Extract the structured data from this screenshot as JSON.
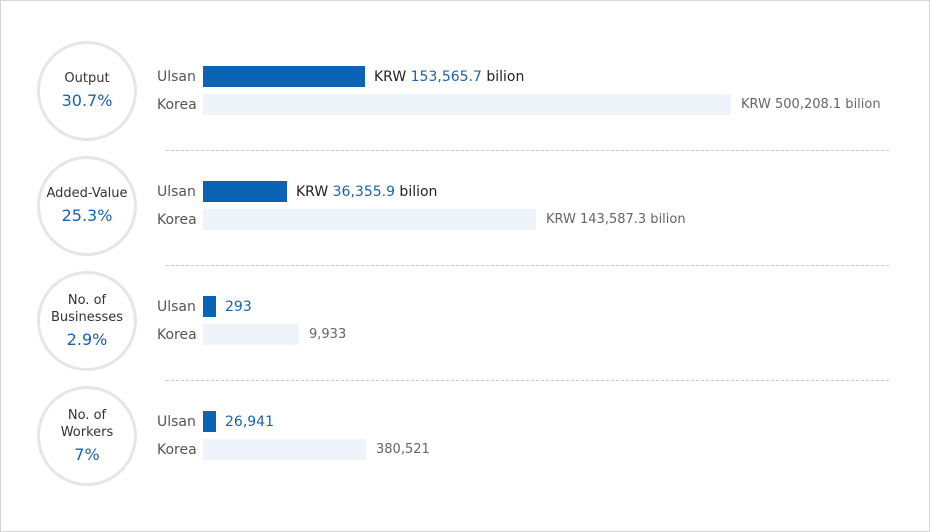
{
  "chart_data": {
    "type": "bar",
    "series_names": [
      "Ulsan",
      "Korea"
    ],
    "categories": [
      {
        "label": "Output",
        "percent": "30.7%",
        "ulsan": {
          "value": 153565.7,
          "prefix": "KRW ",
          "value_text": "153,565.7",
          "suffix": " bilion"
        },
        "korea": {
          "value": 500208.1,
          "text": "KRW 500,208.1 bilion"
        }
      },
      {
        "label": "Added-Value",
        "percent": "25.3%",
        "ulsan": {
          "value": 36355.9,
          "prefix": "KRW ",
          "value_text": "36,355.9",
          "suffix": " bilion"
        },
        "korea": {
          "value": 143587.3,
          "text": "KRW 143,587.3 bilion"
        }
      },
      {
        "label": "No. of\nBusinesses",
        "percent": "2.9%",
        "ulsan": {
          "value": 293,
          "prefix": "",
          "value_text": "293",
          "suffix": ""
        },
        "korea": {
          "value": 9933,
          "text": "9,933"
        }
      },
      {
        "label": "No. of\nWorkers",
        "percent": "7%",
        "ulsan": {
          "value": 26941,
          "prefix": "",
          "value_text": "26,941",
          "suffix": ""
        },
        "korea": {
          "value": 380521,
          "text": "380,521"
        }
      }
    ]
  }
}
